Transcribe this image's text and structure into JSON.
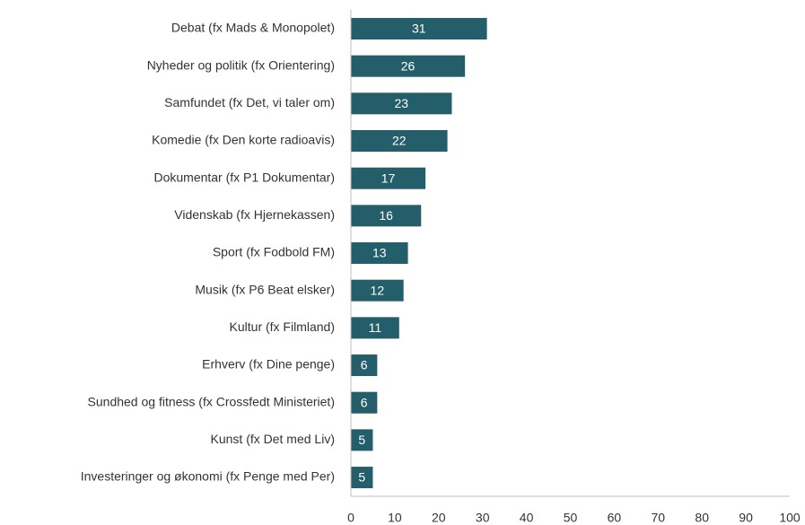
{
  "chart_data": {
    "type": "barh",
    "categories": [
      "Debat (fx Mads & Monopolet)",
      "Nyheder og politik (fx Orientering)",
      "Samfundet (fx Det, vi taler om)",
      "Komedie (fx Den korte radioavis)",
      "Dokumentar (fx P1 Dokumentar)",
      "Videnskab (fx Hjernekassen)",
      "Sport (fx Fodbold FM)",
      "Musik (fx P6 Beat elsker)",
      "Kultur (fx Filmland)",
      "Erhverv (fx Dine penge)",
      "Sundhed og fitness (fx Crossfedt Ministeriet)",
      "Kunst (fx Det med Liv)",
      "Investeringer og økonomi (fx Penge med Per)"
    ],
    "values": [
      31,
      26,
      23,
      22,
      17,
      16,
      13,
      12,
      11,
      6,
      6,
      5,
      5
    ],
    "color": "#255e6b",
    "xlim": [
      0,
      100
    ],
    "xticks": [
      0,
      10,
      20,
      30,
      40,
      50,
      60,
      70,
      80,
      90,
      100
    ]
  }
}
